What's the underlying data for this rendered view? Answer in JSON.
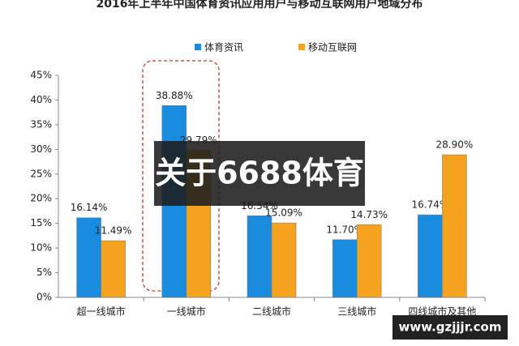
{
  "chart_data": {
    "type": "bar",
    "title": "2016年上半年中国体育资讯应用用户与移动互联网用户地域分布",
    "categories": [
      "超一线城市",
      "一线城市",
      "二线城市",
      "三线城市",
      "四线城市及其他"
    ],
    "series": [
      {
        "name": "体育资讯",
        "color": "#1a8ce0",
        "values": [
          16.14,
          38.88,
          16.54,
          11.7,
          16.74
        ],
        "value_labels": [
          "16.14%",
          "38.88%",
          "16.54%",
          "11.70%",
          "16.74%"
        ]
      },
      {
        "name": "移动互联网",
        "color": "#f5a21e",
        "values": [
          11.49,
          29.79,
          15.09,
          14.73,
          28.9
        ],
        "value_labels": [
          "11.49%",
          "29.79%",
          "15.09%",
          "14.73%",
          "28.90%"
        ]
      }
    ],
    "ylim": [
      0,
      45
    ],
    "yticks": [
      {
        "value": 0,
        "label": "0%"
      },
      {
        "value": 5,
        "label": "5%"
      },
      {
        "value": 10,
        "label": "10%"
      },
      {
        "value": 15,
        "label": "15%"
      },
      {
        "value": 20,
        "label": "20%"
      },
      {
        "value": 25,
        "label": "25%"
      },
      {
        "value": 30,
        "label": "30%"
      },
      {
        "value": 35,
        "label": "35%"
      },
      {
        "value": 40,
        "label": "40%"
      },
      {
        "value": 45,
        "label": "45%"
      }
    ],
    "annotations": [
      "关于6688体育",
      "www.gzjjjr.com"
    ]
  }
}
